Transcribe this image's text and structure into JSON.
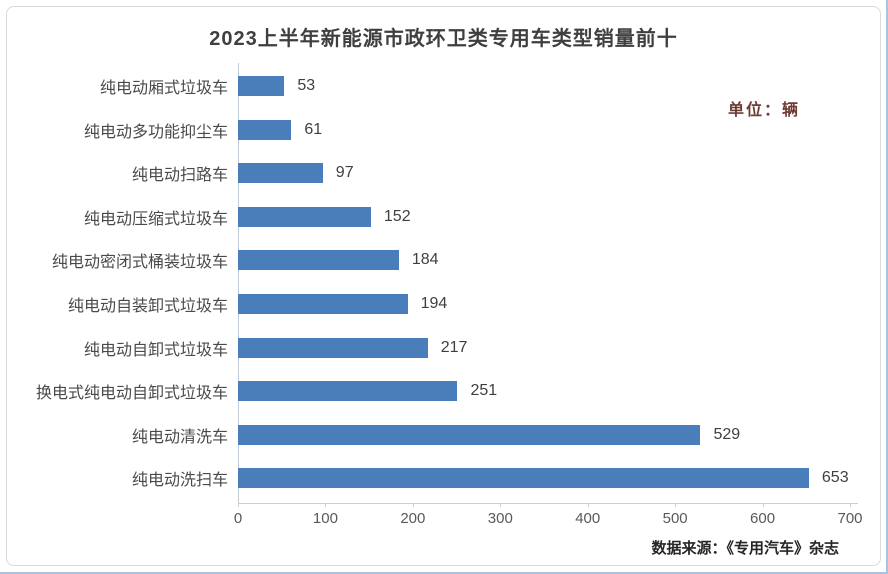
{
  "chart_data": {
    "type": "bar",
    "orientation": "horizontal",
    "title": "2023上半年新能源市政环卫类专用车类型销量前十",
    "unit_label": "单位：辆",
    "source": "数据来源：《专用汽车》杂志",
    "categories": [
      "纯电动厢式垃圾车",
      "纯电动多功能抑尘车",
      "纯电动扫路车",
      "纯电动压缩式垃圾车",
      "纯电动密闭式桶装垃圾车",
      "纯电动自装卸式垃圾车",
      "纯电动自卸式垃圾车",
      "换电式纯电动自卸式垃圾车",
      "纯电动清洗车",
      "纯电动洗扫车"
    ],
    "values": [
      53,
      61,
      97,
      152,
      184,
      194,
      217,
      251,
      529,
      653
    ],
    "x_ticks": [
      0,
      100,
      200,
      300,
      400,
      500,
      600,
      700
    ],
    "xlim": [
      0,
      700
    ],
    "xlabel": "",
    "ylabel": "",
    "grid": false,
    "legend": false,
    "value_labels": true,
    "bar_color": "#4a7ebb",
    "title_color": "#3f3f3f",
    "unit_color": "#6e3b35"
  }
}
